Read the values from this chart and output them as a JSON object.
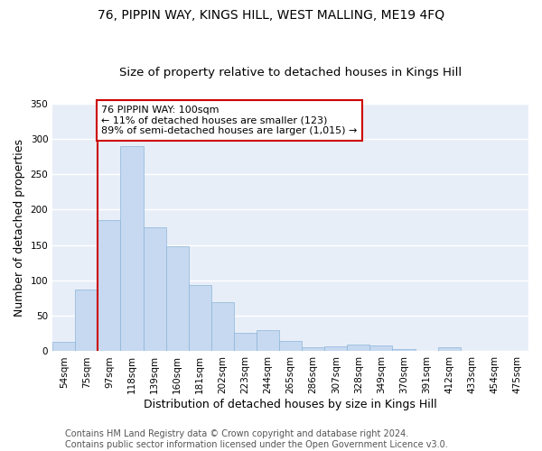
{
  "title1": "76, PIPPIN WAY, KINGS HILL, WEST MALLING, ME19 4FQ",
  "title2": "Size of property relative to detached houses in Kings Hill",
  "xlabel": "Distribution of detached houses by size in Kings Hill",
  "ylabel": "Number of detached properties",
  "categories": [
    "54sqm",
    "75sqm",
    "97sqm",
    "118sqm",
    "139sqm",
    "160sqm",
    "181sqm",
    "202sqm",
    "223sqm",
    "244sqm",
    "265sqm",
    "286sqm",
    "307sqm",
    "328sqm",
    "349sqm",
    "370sqm",
    "391sqm",
    "412sqm",
    "433sqm",
    "454sqm",
    "475sqm"
  ],
  "values": [
    13,
    87,
    185,
    290,
    175,
    148,
    93,
    69,
    26,
    30,
    14,
    6,
    7,
    9,
    8,
    3,
    0,
    6,
    0,
    0,
    0
  ],
  "bar_color": "#c6d9f0",
  "bar_edge_color": "#8cb4d9",
  "vline_color": "#cc0000",
  "annotation_text": "76 PIPPIN WAY: 100sqm\n← 11% of detached houses are smaller (123)\n89% of semi-detached houses are larger (1,015) →",
  "annotation_box_color": "#cc0000",
  "ylim": [
    0,
    350
  ],
  "yticks": [
    0,
    50,
    100,
    150,
    200,
    250,
    300,
    350
  ],
  "footer": "Contains HM Land Registry data © Crown copyright and database right 2024.\nContains public sector information licensed under the Open Government Licence v3.0.",
  "bg_color": "#e8eef8",
  "grid_color": "#ffffff",
  "title_fontsize": 10,
  "subtitle_fontsize": 9.5,
  "axis_label_fontsize": 9,
  "tick_fontsize": 7.5,
  "footer_fontsize": 7,
  "vline_pos": 1.5
}
